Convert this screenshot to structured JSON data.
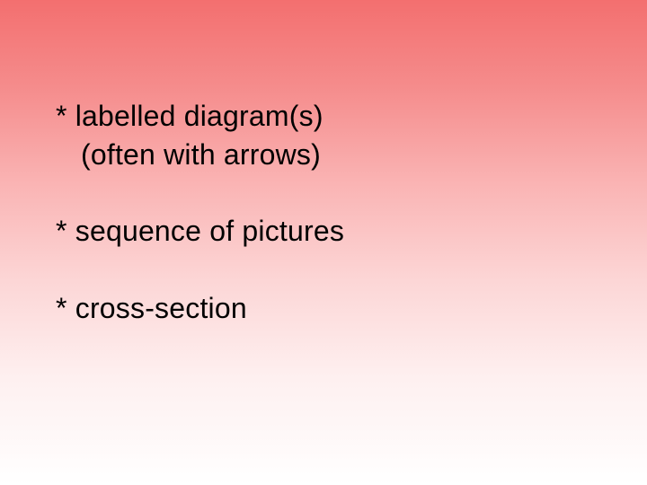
{
  "slide": {
    "background_gradient_top": "#f36f6f",
    "background_gradient_bottom": "#ffffff",
    "text_color": "#000000",
    "font_family": "Comic Sans MS",
    "font_size_pt": 24,
    "bullets": [
      {
        "marker": "*",
        "line1": "labelled diagram(s)",
        "line2": "(often with arrows)"
      },
      {
        "marker": "*",
        "line1": "sequence of pictures"
      },
      {
        "marker": "*",
        "line1": "cross-section"
      }
    ]
  }
}
